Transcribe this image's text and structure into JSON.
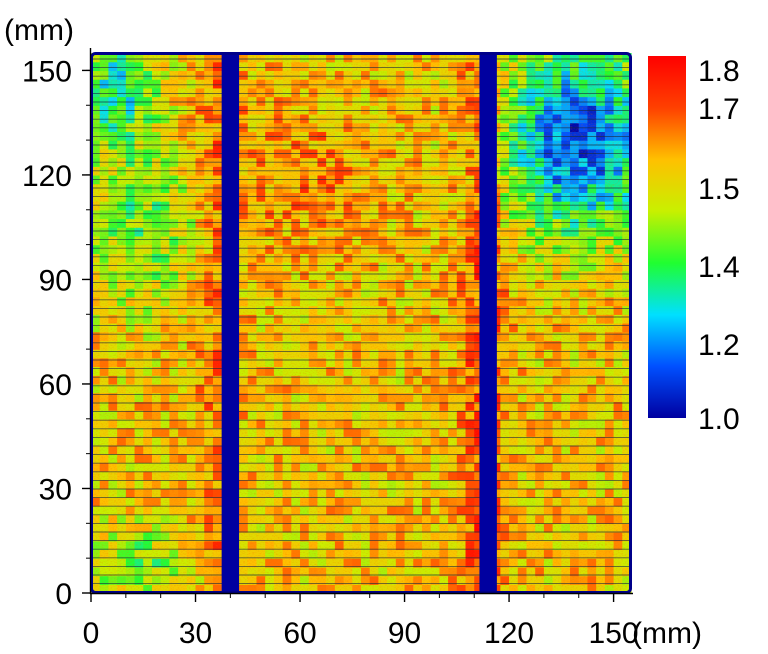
{
  "chart_data": {
    "type": "heatmap",
    "x_unit": "(mm)",
    "y_unit": "(mm)",
    "x_ticks": [
      0,
      30,
      60,
      90,
      120,
      150
    ],
    "y_ticks": [
      0,
      30,
      60,
      90,
      120,
      150
    ],
    "xlim": [
      0,
      155
    ],
    "ylim": [
      0,
      155
    ],
    "colorbar": {
      "ticks": [
        1.8,
        1.7,
        1.5,
        1.4,
        1.2,
        1.0
      ],
      "range": [
        1.0,
        1.8
      ],
      "colors": [
        "#0000a0",
        "#0050ff",
        "#00e0ff",
        "#20ff30",
        "#c8f000",
        "#ffc000",
        "#ff4000",
        "#ff0000"
      ]
    },
    "busbars_x_mm": [
      [
        37.5,
        42.5
      ],
      [
        111.5,
        116.5
      ]
    ],
    "grid": false,
    "legend": "right"
  }
}
